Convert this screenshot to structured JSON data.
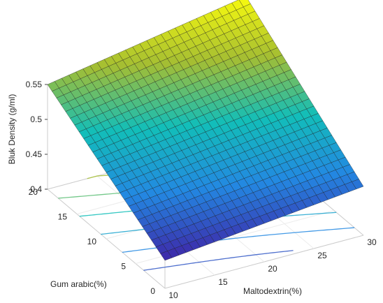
{
  "chart_data": {
    "type": "surface",
    "title": "",
    "zlabel": "Bluk Density (g/ml)",
    "xlabel": "Maltodextrin(%)",
    "ylabel": "Gum arabic(%)",
    "xlim": [
      10,
      30
    ],
    "ylim": [
      0,
      20
    ],
    "zlim": [
      0.4,
      0.55
    ],
    "x_ticks": [
      "10",
      "15",
      "20",
      "25",
      "30"
    ],
    "y_ticks": [
      "0",
      "5",
      "10",
      "15",
      "20"
    ],
    "z_ticks": [
      "0.4",
      "0.45",
      "0.5",
      "0.55"
    ],
    "colormap": "parula",
    "contour_projection": true,
    "grid": "on",
    "corner_values": [
      {
        "x": 10,
        "y": 20,
        "z": 0.55
      },
      {
        "x": 30,
        "y": 20,
        "z": 0.6
      },
      {
        "x": 30,
        "y": 0,
        "z": 0.47
      },
      {
        "x": 10,
        "y": 0,
        "z": 0.44
      }
    ],
    "contour_levels": [
      0.44,
      0.46,
      0.48,
      0.5,
      0.52,
      0.54,
      0.56,
      0.58
    ]
  }
}
